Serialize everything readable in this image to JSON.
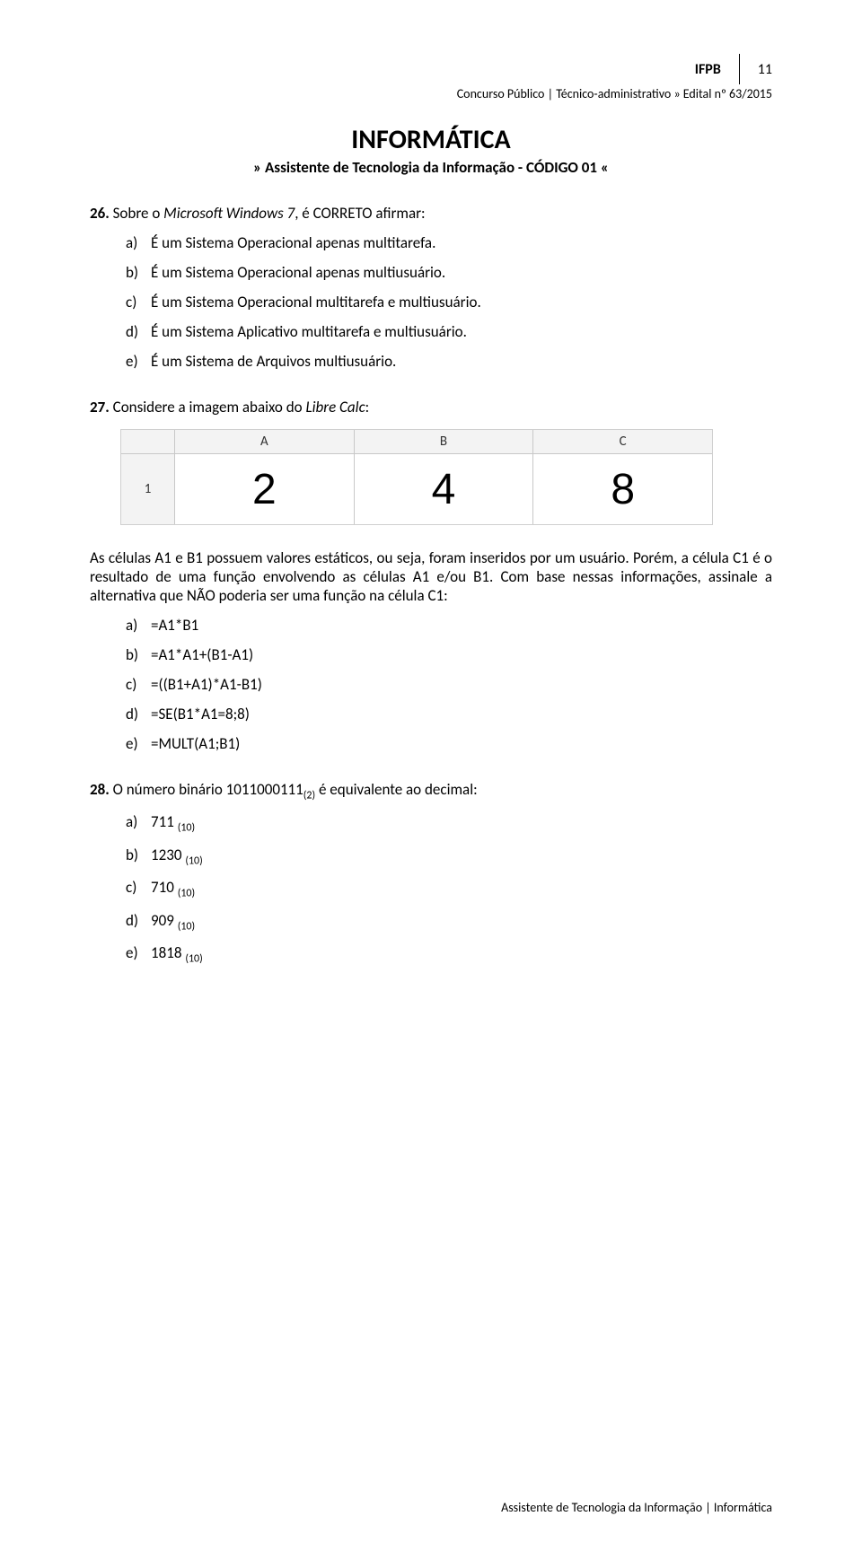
{
  "header": {
    "ifpb": "IFPB",
    "page_number": "11",
    "edital": "Concurso Público | Técnico-administrativo » Edital nº 63/2015"
  },
  "title": {
    "main": "INFORMÁTICA",
    "sub": "» Assistente de Tecnologia da Informação - CÓDIGO 01 «"
  },
  "q26": {
    "number": "26.",
    "text_before_italic": "Sobre o ",
    "italic": "Microsoft Windows 7",
    "text_after_italic": ", é CORRETO afirmar:",
    "options": {
      "a": "É um Sistema Operacional apenas multitarefa.",
      "b": "É um Sistema Operacional apenas multiusuário.",
      "c": "É um Sistema Operacional multitarefa e multiusuário.",
      "d": "É um Sistema Aplicativo multitarefa e multiusuário.",
      "e": "É um Sistema de Arquivos multiusuário."
    }
  },
  "q27": {
    "number": "27.",
    "text_before_italic": "Considere a imagem abaixo do ",
    "italic": "Libre Calc",
    "text_after_italic": ":",
    "spreadsheet": {
      "columns": [
        "A",
        "B",
        "C"
      ],
      "row_label": "1",
      "cells": [
        "2",
        "4",
        "8"
      ],
      "header_bg": "#f3f3f3",
      "border_color": "#c8c8c8",
      "cell_fontsize": 48
    },
    "explain": "As células A1 e B1 possuem valores estáticos, ou seja, foram inseridos por um usuário. Porém, a célula C1 é o resultado de uma função envolvendo as células A1 e/ou B1. Com base nessas informações, assinale a alternativa que NÃO poderia ser uma função na célula C1:",
    "options": {
      "a": "=A1*B1",
      "b": "=A1*A1+(B1-A1)",
      "c": "=((B1+A1)*A1-B1)",
      "d": "=SE(B1*A1=8;8)",
      "e": "=MULT(A1;B1)"
    }
  },
  "q28": {
    "number": "28.",
    "text_part1": "O número binário 1011000111",
    "sub1": "(2)",
    "text_part2": " é equivalente ao decimal:",
    "options": {
      "a": {
        "val": "711",
        "sub": "(10)"
      },
      "b": {
        "val": "1230",
        "sub": "(10)"
      },
      "c": {
        "val": "710",
        "sub": "(10)"
      },
      "d": {
        "val": "909",
        "sub": "(10)"
      },
      "e": {
        "val": "1818",
        "sub": "(10)"
      }
    }
  },
  "footer": "Assistente de Tecnologia da Informação | Informática",
  "letters": {
    "a": "a)",
    "b": "b)",
    "c": "c)",
    "d": "d)",
    "e": "e)"
  }
}
